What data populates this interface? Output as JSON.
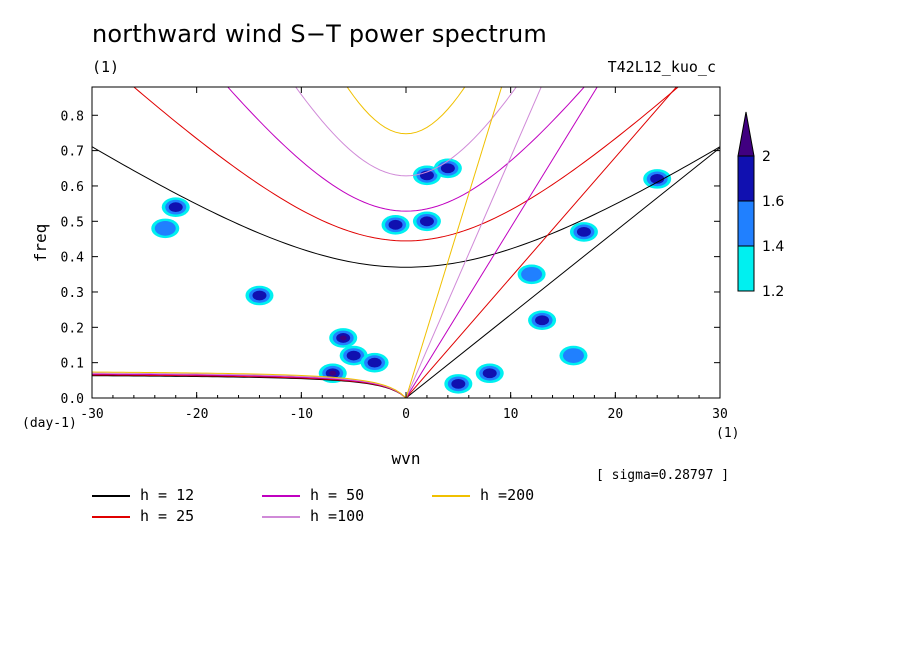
{
  "title": "northward wind S−T power spectrum",
  "subtitle": "(1)",
  "run_name": "T42L12_kuo_c",
  "sigma_label": "[ sigma=0.28797 ]",
  "x_unit": "(1)",
  "y_unit": "(day-1)",
  "colors": {
    "h12": "#000000",
    "h25": "#e00000",
    "h50": "#c000c0",
    "h100": "#d08ad8",
    "h200": "#f0c000",
    "level_1_2": "#00f0f0",
    "level_1_4": "#2080ff",
    "level_1_6": "#1010b0",
    "level_2": "#400080"
  },
  "legend": [
    {
      "label": "h = 12",
      "color_key": "h12"
    },
    {
      "label": "h = 25",
      "color_key": "h25"
    },
    {
      "label": "h = 50",
      "color_key": "h50"
    },
    {
      "label": "h =100",
      "color_key": "h100"
    },
    {
      "label": "h =200",
      "color_key": "h200"
    }
  ],
  "colorbar": {
    "levels": [
      "1.2",
      "1.4",
      "1.6",
      "2"
    ]
  },
  "chart_data": {
    "type": "heatmap",
    "title": "northward wind S−T power spectrum",
    "xlabel": "wvn",
    "ylabel": "freq",
    "xlim": [
      -30,
      30
    ],
    "ylim": [
      0,
      0.88
    ],
    "x_ticks": [
      -30,
      -20,
      -10,
      0,
      10,
      20,
      30
    ],
    "x_tick_labels": [
      "-30",
      "-20",
      "-10",
      "0",
      "10",
      "20",
      "30"
    ],
    "y_ticks": [
      0,
      0.1,
      0.2,
      0.3,
      0.4,
      0.5,
      0.6,
      0.7,
      0.8
    ],
    "y_tick_labels": [
      "0.0",
      "0.1",
      "0.2",
      "0.3",
      "0.4",
      "0.5",
      "0.6",
      "0.7",
      "0.8"
    ],
    "contour_levels": [
      1.2,
      1.4,
      1.6,
      2.0
    ],
    "dispersion_curves": [
      {
        "name": "h = 12",
        "h": 12
      },
      {
        "name": "h = 25",
        "h": 25
      },
      {
        "name": "h = 50",
        "h": 50
      },
      {
        "name": "h =100",
        "h": 100
      },
      {
        "name": "h =200",
        "h": 200
      }
    ],
    "blobs": [
      {
        "x": -7,
        "y": 0.07,
        "level": 2
      },
      {
        "x": -6,
        "y": 0.17,
        "level": 2
      },
      {
        "x": -5,
        "y": 0.12,
        "level": 1.6
      },
      {
        "x": -3,
        "y": 0.1,
        "level": 1.6
      },
      {
        "x": 5,
        "y": 0.04,
        "level": 1.6
      },
      {
        "x": 8,
        "y": 0.07,
        "level": 1.6
      },
      {
        "x": 2,
        "y": 0.5,
        "level": 1.6
      },
      {
        "x": -1,
        "y": 0.49,
        "level": 1.6
      },
      {
        "x": 2,
        "y": 0.63,
        "level": 1.6
      },
      {
        "x": 4,
        "y": 0.65,
        "level": 1.6
      },
      {
        "x": -22,
        "y": 0.54,
        "level": 1.6
      },
      {
        "x": -14,
        "y": 0.29,
        "level": 1.6
      },
      {
        "x": 24,
        "y": 0.62,
        "level": 1.6
      },
      {
        "x": 13,
        "y": 0.22,
        "level": 1.6
      },
      {
        "x": 17,
        "y": 0.47,
        "level": 1.6
      },
      {
        "x": -23,
        "y": 0.48,
        "level": 1.4
      },
      {
        "x": 16,
        "y": 0.12,
        "level": 1.4
      },
      {
        "x": 12,
        "y": 0.35,
        "level": 1.4
      }
    ]
  }
}
